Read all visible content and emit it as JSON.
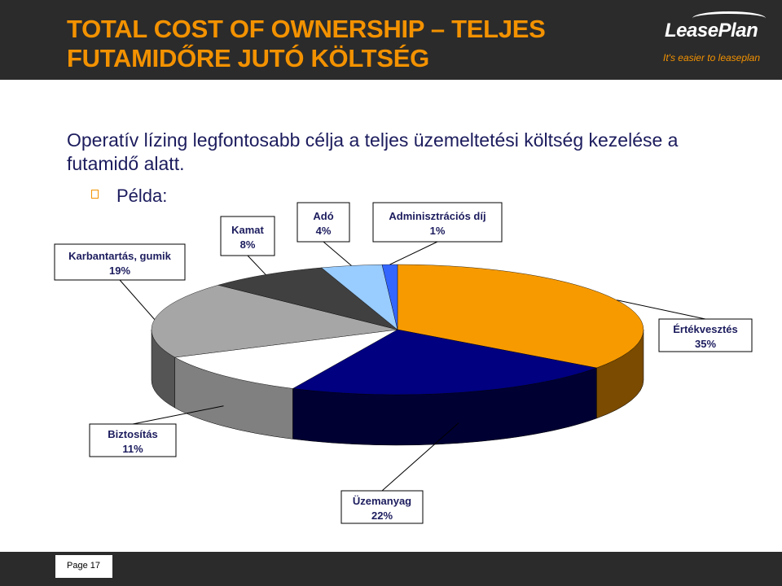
{
  "header": {
    "title": "TOTAL COST OF OWNERSHIP – TELJES\nFUTAMIDŐRE JUTÓ KÖLTSÉG",
    "logo_text": "LeasePlan",
    "tagline": "It's easier to leaseplan"
  },
  "intro_text": "Operatív lízing legfontosabb célja a teljes üzemeltetési költség kezelése a futamidő alatt.",
  "bullet": {
    "icon": "square-bullet-icon",
    "label": "Példa:"
  },
  "footer": {
    "page_label": "Page 17"
  },
  "colors": {
    "accent": "#f39200",
    "header_bg": "#2b2b2b",
    "body_text": "#1c1c5e"
  },
  "chart_data": {
    "type": "pie",
    "three_d": true,
    "title": "",
    "slices": [
      {
        "name": "Értékvesztés",
        "value": 35,
        "pct_label": "35%",
        "color": "#f79a00",
        "side_color": "#7a4b00"
      },
      {
        "name": "Üzemanyag",
        "value": 22,
        "pct_label": "22%",
        "color": "#000080",
        "side_color": "#000033"
      },
      {
        "name": "Biztosítás",
        "value": 11,
        "pct_label": "11%",
        "color": "#ffffff",
        "side_color": "#808080"
      },
      {
        "name": "Karbantartás, gumik",
        "value": 19,
        "pct_label": "19%",
        "color": "#a6a6a6",
        "side_color": "#555555"
      },
      {
        "name": "Kamat",
        "value": 8,
        "pct_label": "8%",
        "color": "#404040",
        "side_color": "#1a1a1a"
      },
      {
        "name": "Adó",
        "value": 4,
        "pct_label": "4%",
        "color": "#99ccff",
        "side_color": "#4d6680"
      },
      {
        "name": "Adminisztrációs díj",
        "value": 1,
        "pct_label": "1%",
        "color": "#3366ff",
        "side_color": "#1a3380"
      }
    ]
  }
}
